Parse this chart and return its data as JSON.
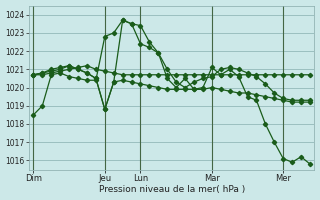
{
  "title": "Pression niveau de la mer( hPa )",
  "bg_color": "#cce8e8",
  "grid_color": "#9bbfbf",
  "line_color": "#1a5c1a",
  "ylim": [
    1015.5,
    1024.5
  ],
  "yticks": [
    1016,
    1017,
    1018,
    1019,
    1020,
    1021,
    1022,
    1023,
    1024
  ],
  "x_day_labels": [
    "Dim",
    "Jeu",
    "Lun",
    "Mar",
    "Mer"
  ],
  "x_day_positions": [
    0,
    8,
    12,
    20,
    28
  ],
  "total_points": 32,
  "series": [
    [
      1018.5,
      1019.0,
      1020.7,
      1020.8,
      1020.6,
      1020.5,
      1020.4,
      1020.4,
      1022.8,
      1023.0,
      1023.7,
      1023.5,
      1023.4,
      1022.5,
      1021.9,
      1020.5,
      1020.0,
      1020.5,
      1019.9,
      1020.0,
      1021.1,
      1020.7,
      1021.0,
      1020.6,
      1019.5,
      1019.3,
      1018.0,
      1017.0,
      1016.1,
      1015.9,
      1016.2,
      1015.8
    ],
    [
      1020.7,
      1020.7,
      1020.8,
      1020.9,
      1021.0,
      1021.1,
      1021.2,
      1021.0,
      1020.9,
      1020.8,
      1020.7,
      1020.7,
      1020.7,
      1020.7,
      1020.7,
      1020.7,
      1020.7,
      1020.7,
      1020.7,
      1020.7,
      1020.7,
      1020.7,
      1020.7,
      1020.7,
      1020.7,
      1020.7,
      1020.7,
      1020.7,
      1020.7,
      1020.7,
      1020.7,
      1020.7
    ],
    [
      1020.7,
      1020.8,
      1021.0,
      1021.1,
      1021.2,
      1021.0,
      1020.8,
      1020.5,
      1018.8,
      1020.3,
      1023.7,
      1023.5,
      1022.4,
      1022.2,
      1021.9,
      1021.0,
      1020.3,
      1020.0,
      1020.3,
      1020.5,
      1020.6,
      1021.0,
      1021.1,
      1021.0,
      1020.8,
      1020.6,
      1020.2,
      1019.7,
      1019.4,
      1019.3,
      1019.3,
      1019.3
    ],
    [
      1020.7,
      1020.8,
      1020.9,
      1021.0,
      1021.2,
      1021.0,
      1020.8,
      1020.5,
      1018.8,
      1020.3,
      1020.4,
      1020.3,
      1020.2,
      1020.1,
      1020.0,
      1019.9,
      1019.9,
      1019.9,
      1019.9,
      1019.9,
      1020.0,
      1019.9,
      1019.8,
      1019.7,
      1019.7,
      1019.6,
      1019.5,
      1019.4,
      1019.3,
      1019.2,
      1019.2,
      1019.2
    ]
  ]
}
